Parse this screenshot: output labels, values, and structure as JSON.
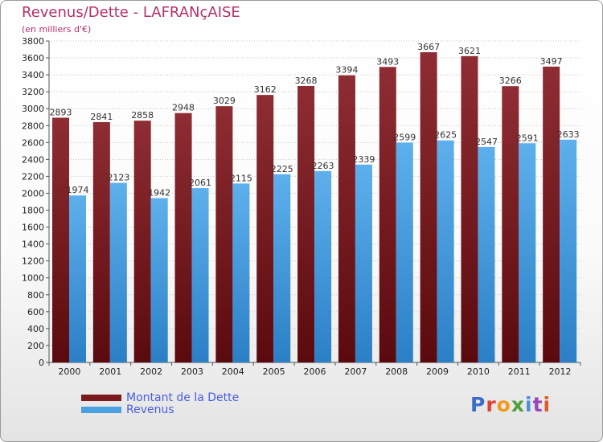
{
  "header": {
    "title": "Revenus/Dette - LAFRANçAISE",
    "subtitle": "(en milliers d'€)"
  },
  "chart_data": {
    "type": "bar",
    "title": "Revenus/Dette - LAFRANçAISE",
    "ylabel": "(en milliers d'€)",
    "xlabel": "",
    "ylim": [
      0,
      3800
    ],
    "ytick_step": 200,
    "grid": true,
    "legend_position": "bottom-left",
    "categories": [
      "2000",
      "2001",
      "2002",
      "2003",
      "2004",
      "2005",
      "2006",
      "2007",
      "2008",
      "2009",
      "2010",
      "2011",
      "2012"
    ],
    "series": [
      {
        "name": "Montant de la Dette",
        "color": "#7a1a1f",
        "values": [
          2893,
          2841,
          2858,
          2948,
          3029,
          3162,
          3268,
          3394,
          3493,
          3667,
          3621,
          3266,
          3497
        ]
      },
      {
        "name": "Revenus",
        "color": "#4ba0e0",
        "values": [
          1974,
          2123,
          1942,
          2061,
          2115,
          2225,
          2263,
          2339,
          2599,
          2625,
          2547,
          2591,
          2633
        ]
      }
    ]
  },
  "logo": {
    "text": "Proxiti",
    "colors": [
      "#3a6cc8",
      "#e0402f",
      "#f09a1e",
      "#4f9e3a",
      "#4a90d9",
      "#9a46b8",
      "#e05a2a"
    ]
  }
}
